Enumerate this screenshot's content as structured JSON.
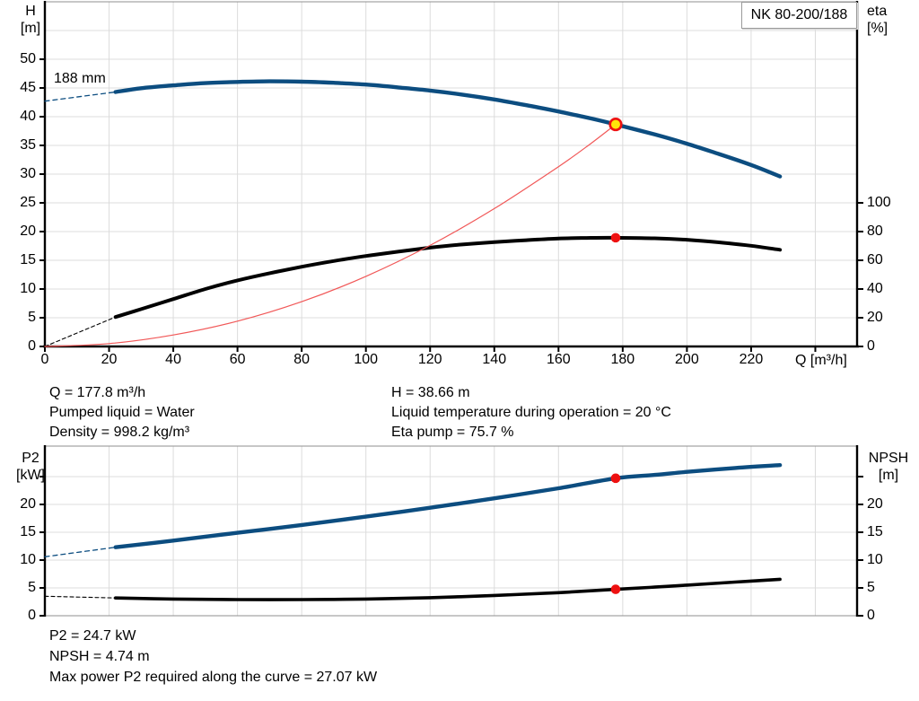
{
  "pump": {
    "model_label": "NK 80-200/188",
    "impeller_label": "188 mm"
  },
  "colors": {
    "curve_blue": "#0c4d80",
    "curve_black": "#000000",
    "system_red": "#f15858",
    "marker_red": "#ee1111",
    "marker_yellow": "#ffe60a",
    "grid": "#dcdcdc",
    "frame_gray": "#8f8f8f",
    "axis_black": "#000000"
  },
  "axis_labels": {
    "h_top": "H",
    "h_unit": "[m]",
    "eta_top": "eta",
    "eta_unit": "[%]",
    "q": "Q [m³/h]",
    "p2_top": "P2",
    "p2_unit": "[kW]",
    "npsh_top": "NPSH",
    "npsh_unit": "[m]"
  },
  "info": {
    "flow": "Q = 177.8 m³/h",
    "liquid": "Pumped liquid = Water",
    "density": "Density = 998.2 kg/m³",
    "head": "H = 38.66 m",
    "temperature": "Liquid temperature during operation = 20 °C",
    "eta_pump": "Eta pump = 75.7 %",
    "p2": "P2 = 24.7 kW",
    "npsh": "NPSH = 4.74 m",
    "max_power": "Max power P2 required along the curve = 27.07 kW"
  },
  "chart_data": [
    {
      "type": "line",
      "title": "NK 80-200/188",
      "xlabel": "Q [m³/h]",
      "ylabel_left": "H [m]",
      "ylabel_right": "eta [%]",
      "x_range": [
        0,
        253
      ],
      "y_left_range": [
        0,
        60
      ],
      "y_right_range": [
        0,
        240
      ],
      "x_ticks": [
        0,
        20,
        40,
        60,
        80,
        100,
        120,
        140,
        160,
        180,
        200,
        220
      ],
      "x_ticks_unlabeled": [
        240
      ],
      "y_left_ticks": [
        0,
        5,
        10,
        15,
        20,
        25,
        30,
        35,
        40,
        45,
        50
      ],
      "y_right_ticks": [
        0,
        20,
        40,
        60,
        80,
        100
      ],
      "grid": true,
      "series": [
        {
          "name": "head-extension",
          "axis": "left",
          "color": "blue",
          "dashed": true,
          "points": [
            [
              0,
              42.7
            ],
            [
              22,
              44.3
            ]
          ]
        },
        {
          "name": "head",
          "axis": "left",
          "color": "blue",
          "dashed": false,
          "points": [
            [
              22,
              44.3
            ],
            [
              30,
              44.95
            ],
            [
              40,
              45.45
            ],
            [
              50,
              45.85
            ],
            [
              60,
              46.05
            ],
            [
              70,
              46.15
            ],
            [
              80,
              46.1
            ],
            [
              90,
              45.9
            ],
            [
              100,
              45.6
            ],
            [
              110,
              45.1
            ],
            [
              120,
              44.55
            ],
            [
              130,
              43.85
            ],
            [
              140,
              43.0
            ],
            [
              150,
              42.0
            ],
            [
              160,
              40.9
            ],
            [
              170,
              39.7
            ],
            [
              177.8,
              38.66
            ],
            [
              190,
              36.9
            ],
            [
              200,
              35.3
            ],
            [
              210,
              33.5
            ],
            [
              220,
              31.6
            ],
            [
              229,
              29.6
            ]
          ]
        },
        {
          "name": "efficiency-extension",
          "axis": "right",
          "color": "black",
          "dashed": true,
          "points": [
            [
              0,
              0
            ],
            [
              22,
              20.5
            ]
          ]
        },
        {
          "name": "efficiency",
          "axis": "right",
          "color": "black",
          "dashed": false,
          "points": [
            [
              22,
              20.5
            ],
            [
              30,
              26
            ],
            [
              40,
              33
            ],
            [
              50,
              40
            ],
            [
              60,
              46
            ],
            [
              70,
              51
            ],
            [
              80,
              55.5
            ],
            [
              90,
              59.5
            ],
            [
              100,
              63
            ],
            [
              110,
              66
            ],
            [
              120,
              68.8
            ],
            [
              130,
              71
            ],
            [
              140,
              72.7
            ],
            [
              150,
              74
            ],
            [
              160,
              75.2
            ],
            [
              170,
              75.6
            ],
            [
              177.8,
              75.7
            ],
            [
              190,
              75.3
            ],
            [
              200,
              74.3
            ],
            [
              210,
              72.5
            ],
            [
              220,
              70.1
            ],
            [
              229,
              67.3
            ]
          ]
        },
        {
          "name": "system-resistance",
          "axis": "left",
          "color": "red",
          "dashed": false,
          "points": [
            [
              0,
              0
            ],
            [
              20,
              0.5
            ],
            [
              40,
              2.0
            ],
            [
              60,
              4.4
            ],
            [
              80,
              7.8
            ],
            [
              100,
              12.2
            ],
            [
              120,
              17.6
            ],
            [
              140,
              24.0
            ],
            [
              160,
              31.3
            ],
            [
              170,
              35.3
            ],
            [
              177.8,
              38.66
            ]
          ]
        }
      ],
      "markers": [
        {
          "name": "duty-point-head",
          "style": "duty-point",
          "axis": "left",
          "q": 177.8,
          "value": 38.66
        },
        {
          "name": "duty-point-efficiency",
          "style": "dot",
          "axis": "right",
          "q": 177.8,
          "value": 75.7
        }
      ]
    },
    {
      "type": "line",
      "title": "",
      "xlabel": "",
      "ylabel_left": "P2 [kW]",
      "ylabel_right": "NPSH [m]",
      "x_range": [
        0,
        253
      ],
      "y_left_range": [
        0,
        30.5
      ],
      "y_right_range": [
        0,
        30.5
      ],
      "x_ticks": [],
      "x_ticks_unlabeled": [],
      "y_left_ticks": [
        0,
        5,
        10,
        15,
        20
      ],
      "y_left_ticks_unlabeled": [
        25
      ],
      "y_right_ticks": [
        0,
        5,
        10,
        15,
        20
      ],
      "y_right_ticks_unlabeled": [
        25
      ],
      "grid": true,
      "series": [
        {
          "name": "p2-extension",
          "axis": "left",
          "color": "blue",
          "dashed": true,
          "points": [
            [
              0,
              10.6
            ],
            [
              22,
              12.3
            ]
          ]
        },
        {
          "name": "p2",
          "axis": "left",
          "color": "blue",
          "dashed": false,
          "points": [
            [
              22,
              12.3
            ],
            [
              40,
              13.5
            ],
            [
              60,
              14.9
            ],
            [
              80,
              16.3
            ],
            [
              100,
              17.8
            ],
            [
              120,
              19.4
            ],
            [
              140,
              21.1
            ],
            [
              160,
              22.9
            ],
            [
              177.8,
              24.7
            ],
            [
              190,
              25.3
            ],
            [
              200,
              25.85
            ],
            [
              215,
              26.55
            ],
            [
              229,
              27.07
            ]
          ]
        },
        {
          "name": "npsh-extension",
          "axis": "left",
          "color": "black",
          "dashed": true,
          "points": [
            [
              0,
              3.5
            ],
            [
              22,
              3.2
            ]
          ]
        },
        {
          "name": "npsh",
          "axis": "left",
          "color": "black",
          "dashed": false,
          "points": [
            [
              22,
              3.2
            ],
            [
              40,
              3.0
            ],
            [
              60,
              2.9
            ],
            [
              80,
              2.9
            ],
            [
              100,
              3.0
            ],
            [
              120,
              3.25
            ],
            [
              140,
              3.65
            ],
            [
              160,
              4.15
            ],
            [
              177.8,
              4.74
            ],
            [
              190,
              5.15
            ],
            [
              200,
              5.5
            ],
            [
              215,
              6.05
            ],
            [
              229,
              6.55
            ]
          ]
        }
      ],
      "markers": [
        {
          "name": "duty-point-p2",
          "style": "dot",
          "axis": "left",
          "q": 177.8,
          "value": 24.7
        },
        {
          "name": "duty-point-npsh",
          "style": "dot",
          "axis": "left",
          "q": 177.8,
          "value": 4.74
        }
      ]
    }
  ]
}
